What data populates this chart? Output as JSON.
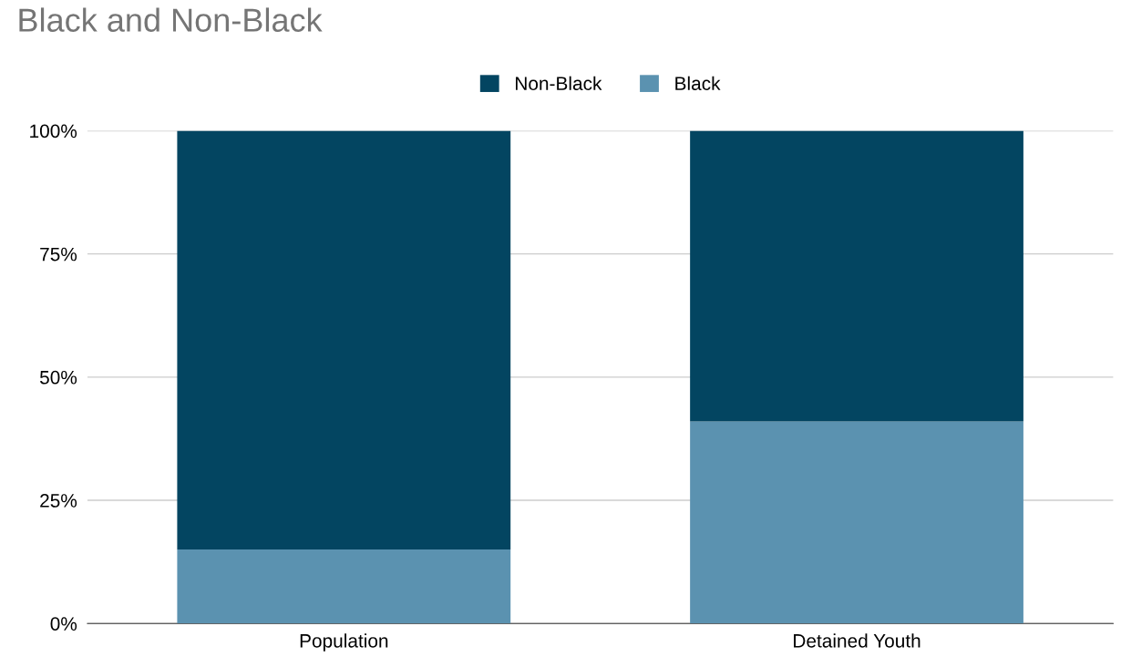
{
  "chart_data": {
    "type": "bar",
    "title": "Black and Non-Black",
    "categories": [
      "Population",
      "Detained Youth"
    ],
    "stacked": true,
    "series": [
      {
        "name": "Black",
        "color": "#5b92b0",
        "values": [
          15,
          41
        ]
      },
      {
        "name": "Non-Black",
        "color": "#034561",
        "values": [
          85,
          59
        ]
      }
    ],
    "ylim": [
      0,
      100
    ],
    "yticks": [
      {
        "value": 0,
        "label": "0%"
      },
      {
        "value": 25,
        "label": "25%"
      },
      {
        "value": 50,
        "label": "50%"
      },
      {
        "value": 75,
        "label": "75%"
      },
      {
        "value": 100,
        "label": "100%"
      }
    ],
    "grid": "y",
    "legend": "top"
  }
}
